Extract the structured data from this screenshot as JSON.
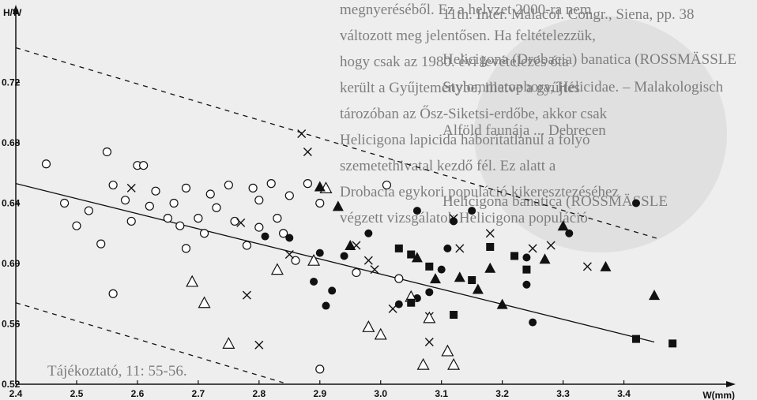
{
  "background_text": [
    "megnyeréséből. Ez a helyzet 2000-ra nem",
    "változott meg jelentősen. Ha feltételezzük,",
    "hogy csak az 1980. évi levételezés óta",
    "került a Gyűjteménybe, illetve a gyűjtés",
    "tározóban az Ősz-Siketsi-erdőbe, akkor csak",
    "Helicigona lapicida háborítatlanul a folyó",
    "szemetethivatal kezdő fél. Ez alatt a",
    "Drobacia egykori populáció kikeresztezéséhez",
    "végzett vizsgálatok Helicigona populáció",
    "11th. Inter. Malacol. Congr., Siena, pp. 38",
    "Helicigona (Drobacia) banatica (ROSSMÄSSLE",
    "Stylommatophora, Helicidae. – Malakologisch",
    "Alföld faunája ... Debrecen",
    "Helicigona banatica (ROSSMÄSSLE",
    "Tájékoztató, 11: 55-56."
  ],
  "chart_data": {
    "type": "scatter",
    "title": "",
    "xlabel": "W(mm)",
    "ylabel": "H/W",
    "xlim": [
      2.4,
      3.55
    ],
    "ylim": [
      0.52,
      0.76
    ],
    "x_ticks": [
      2.4,
      2.5,
      2.6,
      2.7,
      2.8,
      2.9,
      3.0,
      3.1,
      3.2,
      3.3,
      3.4
    ],
    "x_tick_labels": [
      "2.4",
      "2.5",
      "2.6",
      "2.7",
      "2.8",
      "2.9",
      "3.0",
      "3.1",
      "3.2",
      "3.3",
      "3.4"
    ],
    "y_ticks": [
      0.52,
      0.56,
      0.6,
      0.64,
      0.68,
      0.72
    ],
    "y_tick_labels": [
      "0.52",
      "0.56",
      "0.60",
      "0.64",
      "0.68",
      "0.72"
    ],
    "regression_line": [
      [
        2.4,
        0.653
      ],
      [
        3.45,
        0.548
      ]
    ],
    "upper_bound_line": [
      [
        2.4,
        0.743
      ],
      [
        3.46,
        0.616
      ]
    ],
    "lower_bound_line": [
      [
        2.4,
        0.574
      ],
      [
        2.84,
        0.521
      ]
    ],
    "series": [
      {
        "marker": "open-circle",
        "points": [
          [
            2.45,
            0.666
          ],
          [
            2.48,
            0.64
          ],
          [
            2.5,
            0.625
          ],
          [
            2.52,
            0.635
          ],
          [
            2.54,
            0.613
          ],
          [
            2.55,
            0.674
          ],
          [
            2.56,
            0.652
          ],
          [
            2.58,
            0.642
          ],
          [
            2.59,
            0.628
          ],
          [
            2.6,
            0.665
          ],
          [
            2.61,
            0.665
          ],
          [
            2.62,
            0.638
          ],
          [
            2.63,
            0.648
          ],
          [
            2.65,
            0.63
          ],
          [
            2.66,
            0.64
          ],
          [
            2.67,
            0.625
          ],
          [
            2.68,
            0.61
          ],
          [
            2.68,
            0.65
          ],
          [
            2.7,
            0.63
          ],
          [
            2.71,
            0.62
          ],
          [
            2.72,
            0.646
          ],
          [
            2.73,
            0.637
          ],
          [
            2.75,
            0.652
          ],
          [
            2.76,
            0.628
          ],
          [
            2.78,
            0.612
          ],
          [
            2.79,
            0.65
          ],
          [
            2.8,
            0.642
          ],
          [
            2.8,
            0.624
          ],
          [
            2.82,
            0.653
          ],
          [
            2.83,
            0.63
          ],
          [
            2.84,
            0.62
          ],
          [
            2.85,
            0.645
          ],
          [
            2.86,
            0.602
          ],
          [
            2.88,
            0.653
          ],
          [
            2.9,
            0.64
          ],
          [
            2.9,
            0.53
          ],
          [
            2.96,
            0.594
          ],
          [
            3.01,
            0.652
          ],
          [
            3.03,
            0.59
          ],
          [
            2.56,
            0.58
          ]
        ]
      },
      {
        "marker": "filled-circle",
        "points": [
          [
            2.81,
            0.618
          ],
          [
            2.85,
            0.617
          ],
          [
            2.89,
            0.588
          ],
          [
            2.9,
            0.607
          ],
          [
            2.91,
            0.572
          ],
          [
            2.92,
            0.582
          ],
          [
            2.94,
            0.605
          ],
          [
            3.03,
            0.573
          ],
          [
            3.06,
            0.577
          ],
          [
            3.08,
            0.581
          ],
          [
            3.1,
            0.596
          ],
          [
            3.11,
            0.61
          ],
          [
            3.12,
            0.628
          ],
          [
            3.15,
            0.635
          ],
          [
            3.24,
            0.604
          ],
          [
            3.24,
            0.586
          ],
          [
            3.25,
            0.561
          ],
          [
            3.31,
            0.62
          ],
          [
            3.42,
            0.64
          ],
          [
            3.06,
            0.635
          ],
          [
            2.98,
            0.62
          ]
        ]
      },
      {
        "marker": "cross",
        "points": [
          [
            2.59,
            0.65
          ],
          [
            2.77,
            0.627
          ],
          [
            2.78,
            0.579
          ],
          [
            2.8,
            0.546
          ],
          [
            2.85,
            0.606
          ],
          [
            2.87,
            0.686
          ],
          [
            2.88,
            0.674
          ],
          [
            2.96,
            0.612
          ],
          [
            2.98,
            0.602
          ],
          [
            2.99,
            0.596
          ],
          [
            3.02,
            0.57
          ],
          [
            3.08,
            0.548
          ],
          [
            3.12,
            0.63
          ],
          [
            3.13,
            0.61
          ],
          [
            3.18,
            0.62
          ],
          [
            3.25,
            0.61
          ],
          [
            3.28,
            0.612
          ],
          [
            3.34,
            0.598
          ],
          [
            3.08,
            0.565
          ]
        ]
      },
      {
        "marker": "open-triangle",
        "points": [
          [
            2.69,
            0.588
          ],
          [
            2.71,
            0.574
          ],
          [
            2.75,
            0.547
          ],
          [
            2.83,
            0.596
          ],
          [
            2.89,
            0.602
          ],
          [
            2.91,
            0.65
          ],
          [
            2.98,
            0.558
          ],
          [
            3.0,
            0.553
          ],
          [
            3.05,
            0.578
          ],
          [
            3.07,
            0.533
          ],
          [
            3.08,
            0.564
          ],
          [
            3.11,
            0.542
          ],
          [
            3.12,
            0.533
          ]
        ]
      },
      {
        "marker": "filled-triangle",
        "points": [
          [
            2.9,
            0.651
          ],
          [
            2.93,
            0.638
          ],
          [
            2.95,
            0.612
          ],
          [
            3.06,
            0.604
          ],
          [
            3.09,
            0.59
          ],
          [
            3.16,
            0.583
          ],
          [
            3.18,
            0.597
          ],
          [
            3.2,
            0.573
          ],
          [
            3.27,
            0.603
          ],
          [
            3.3,
            0.625
          ],
          [
            3.37,
            0.598
          ],
          [
            3.45,
            0.579
          ],
          [
            3.13,
            0.591
          ]
        ]
      },
      {
        "marker": "filled-square",
        "points": [
          [
            3.03,
            0.61
          ],
          [
            3.05,
            0.606
          ],
          [
            3.08,
            0.598
          ],
          [
            3.12,
            0.566
          ],
          [
            3.15,
            0.589
          ],
          [
            3.18,
            0.611
          ],
          [
            3.22,
            0.605
          ],
          [
            3.24,
            0.596
          ],
          [
            3.42,
            0.55
          ],
          [
            3.48,
            0.547
          ],
          [
            3.05,
            0.574
          ]
        ]
      }
    ]
  }
}
